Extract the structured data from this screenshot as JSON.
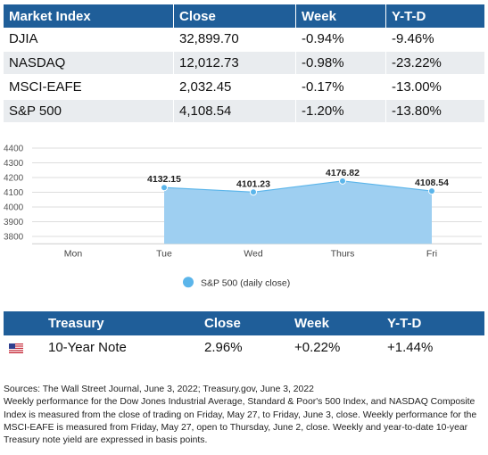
{
  "market_table": {
    "headers": [
      "Market Index",
      "Close",
      "Week",
      "Y-T-D"
    ],
    "rows": [
      [
        "DJIA",
        "32,899.70",
        "-0.94%",
        "-9.46%"
      ],
      [
        "NASDAQ",
        "12,012.73",
        "-0.98%",
        "-23.22%"
      ],
      [
        "MSCI-EAFE",
        "2,032.45",
        "-0.17%",
        "-13.00%"
      ],
      [
        "S&P 500",
        "4,108.54",
        "-1.20%",
        "-13.80%"
      ]
    ]
  },
  "chart_data": {
    "type": "area",
    "categories": [
      "Mon",
      "Tue",
      "Wed",
      "Thurs",
      "Fri"
    ],
    "series": [
      {
        "name": "S&P 500 (daily close)",
        "values": [
          null,
          4132.15,
          4101.23,
          4176.82,
          4108.54
        ],
        "data_labels": [
          "",
          "4132.15",
          "4101.23",
          "4176.82",
          "4108.54"
        ]
      }
    ],
    "yticks": [
      "4400",
      "4300",
      "4200",
      "4100",
      "4000",
      "3900",
      "3800"
    ],
    "ylim": [
      3750,
      4400
    ],
    "grid": true,
    "legend": "bottom-center",
    "colors": {
      "fill": "#9ecff1",
      "line": "#5bb5ea",
      "marker": "#5bb5ea",
      "grid": "#dddddd"
    }
  },
  "treasury_table": {
    "headers": [
      "",
      "Treasury",
      "Close",
      "Week",
      "Y-T-D"
    ],
    "row": [
      "10-Year Note",
      "2.96%",
      "+0.22%",
      "+1.44%"
    ],
    "flag_icon": "us-flag-icon"
  },
  "notes": {
    "line1": "Sources: The Wall Street Journal, June 3, 2022; Treasury.gov, June 3, 2022",
    "line2": "Weekly performance for the Dow Jones Industrial Average, Standard & Poor's 500 Index, and NASDAQ Composite Index is measured from the close of trading on Friday, May 27, to Friday, June 3, close. Weekly performance for the MSCI-EAFE is measured from Friday, May 27, open to Thursday, June 2, close. Weekly and year-to-date 10-year Treasury note yield are expressed in basis points."
  },
  "colors": {
    "header_bg": "#1f5e99",
    "row_alt": "#e9ecef"
  }
}
